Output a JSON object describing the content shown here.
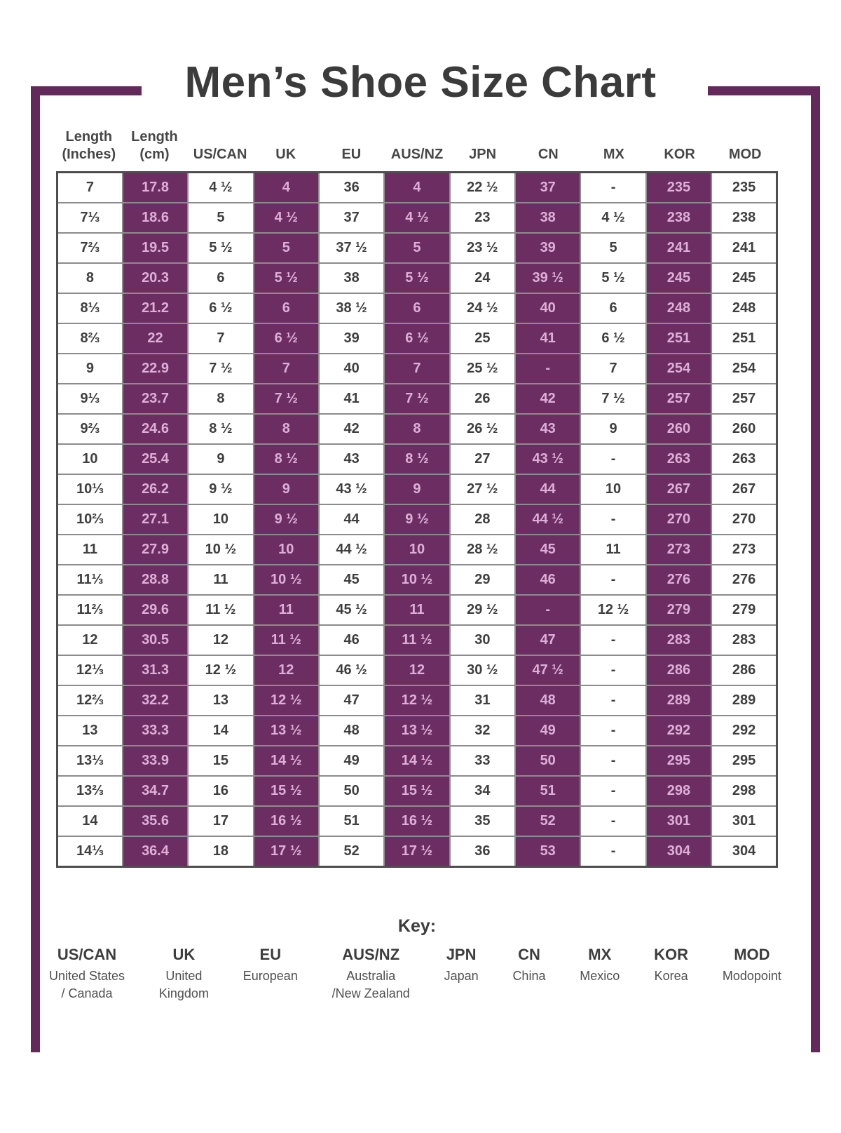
{
  "chart_data": {
    "type": "table",
    "title": "Men’s Shoe Size Chart",
    "columns": [
      {
        "key": "length-inches",
        "label": "Length (Inches)",
        "label_lines": [
          "Length",
          "(Inches)"
        ]
      },
      {
        "key": "length-cm",
        "label": "Length (cm)",
        "label_lines": [
          "Length",
          "(cm)"
        ]
      },
      {
        "key": "us-can",
        "label": "US/CAN",
        "label_lines": [
          "US/CAN"
        ]
      },
      {
        "key": "uk",
        "label": "UK",
        "label_lines": [
          "UK"
        ]
      },
      {
        "key": "eu",
        "label": "EU",
        "label_lines": [
          "EU"
        ]
      },
      {
        "key": "aus-nz",
        "label": "AUS/NZ",
        "label_lines": [
          "AUS/NZ"
        ]
      },
      {
        "key": "jpn",
        "label": "JPN",
        "label_lines": [
          "JPN"
        ]
      },
      {
        "key": "cn",
        "label": "CN",
        "label_lines": [
          "CN"
        ]
      },
      {
        "key": "mx",
        "label": "MX",
        "label_lines": [
          "MX"
        ]
      },
      {
        "key": "kor",
        "label": "KOR",
        "label_lines": [
          "KOR"
        ]
      },
      {
        "key": "mod",
        "label": "MOD",
        "label_lines": [
          "MOD"
        ]
      }
    ],
    "rows": [
      [
        "7",
        "17.8",
        "4 ½",
        "4",
        "36",
        "4",
        "22 ½",
        "37",
        "-",
        "235",
        "235"
      ],
      [
        "7⅓",
        "18.6",
        "5",
        "4 ½",
        "37",
        "4 ½",
        "23",
        "38",
        "4 ½",
        "238",
        "238"
      ],
      [
        "7⅔",
        "19.5",
        "5 ½",
        "5",
        "37 ½",
        "5",
        "23 ½",
        "39",
        "5",
        "241",
        "241"
      ],
      [
        "8",
        "20.3",
        "6",
        "5 ½",
        "38",
        "5 ½",
        "24",
        "39 ½",
        "5 ½",
        "245",
        "245"
      ],
      [
        "8⅓",
        "21.2",
        "6 ½",
        "6",
        "38 ½",
        "6",
        "24 ½",
        "40",
        "6",
        "248",
        "248"
      ],
      [
        "8⅔",
        "22",
        "7",
        "6 ½",
        "39",
        "6 ½",
        "25",
        "41",
        "6 ½",
        "251",
        "251"
      ],
      [
        "9",
        "22.9",
        "7 ½",
        "7",
        "40",
        "7",
        "25 ½",
        "-",
        "7",
        "254",
        "254"
      ],
      [
        "9⅓",
        "23.7",
        "8",
        "7 ½",
        "41",
        "7 ½",
        "26",
        "42",
        "7 ½",
        "257",
        "257"
      ],
      [
        "9⅔",
        "24.6",
        "8 ½",
        "8",
        "42",
        "8",
        "26 ½",
        "43",
        "9",
        "260",
        "260"
      ],
      [
        "10",
        "25.4",
        "9",
        "8 ½",
        "43",
        "8 ½",
        "27",
        "43 ½",
        "-",
        "263",
        "263"
      ],
      [
        "10⅓",
        "26.2",
        "9 ½",
        "9",
        "43 ½",
        "9",
        "27 ½",
        "44",
        "10",
        "267",
        "267"
      ],
      [
        "10⅔",
        "27.1",
        "10",
        "9 ½",
        "44",
        "9 ½",
        "28",
        "44 ½",
        "-",
        "270",
        "270"
      ],
      [
        "11",
        "27.9",
        "10 ½",
        "10",
        "44 ½",
        "10",
        "28 ½",
        "45",
        "11",
        "273",
        "273"
      ],
      [
        "11⅓",
        "28.8",
        "11",
        "10 ½",
        "45",
        "10 ½",
        "29",
        "46",
        "-",
        "276",
        "276"
      ],
      [
        "11⅔",
        "29.6",
        "11 ½",
        "11",
        "45 ½",
        "11",
        "29 ½",
        "-",
        "12 ½",
        "279",
        "279"
      ],
      [
        "12",
        "30.5",
        "12",
        "11 ½",
        "46",
        "11 ½",
        "30",
        "47",
        "-",
        "283",
        "283"
      ],
      [
        "12⅓",
        "31.3",
        "12 ½",
        "12",
        "46 ½",
        "12",
        "30 ½",
        "47 ½",
        "-",
        "286",
        "286"
      ],
      [
        "12⅔",
        "32.2",
        "13",
        "12 ½",
        "47",
        "12 ½",
        "31",
        "48",
        "-",
        "289",
        "289"
      ],
      [
        "13",
        "33.3",
        "14",
        "13 ½",
        "48",
        "13 ½",
        "32",
        "49",
        "-",
        "292",
        "292"
      ],
      [
        "13⅓",
        "33.9",
        "15",
        "14 ½",
        "49",
        "14 ½",
        "33",
        "50",
        "-",
        "295",
        "295"
      ],
      [
        "13⅔",
        "34.7",
        "16",
        "15 ½",
        "50",
        "15 ½",
        "34",
        "51",
        "-",
        "298",
        "298"
      ],
      [
        "14",
        "35.6",
        "17",
        "16 ½",
        "51",
        "16 ½",
        "35",
        "52",
        "-",
        "301",
        "301"
      ],
      [
        "14⅓",
        "36.4",
        "18",
        "17 ½",
        "52",
        "17 ½",
        "36",
        "53",
        "-",
        "304",
        "304"
      ]
    ],
    "purple_column_indexes": [
      1,
      3,
      5,
      7,
      9
    ]
  },
  "key": {
    "heading": "Key:",
    "entries": [
      {
        "abbr": "US/CAN",
        "desc": "United States / Canada",
        "desc_lines": [
          "United States",
          "/ Canada"
        ]
      },
      {
        "abbr": "UK",
        "desc": "United Kingdom",
        "desc_lines": [
          "United",
          "Kingdom"
        ]
      },
      {
        "abbr": "EU",
        "desc": "European",
        "desc_lines": [
          "European"
        ]
      },
      {
        "abbr": "AUS/NZ",
        "desc": "Australia /New Zealand",
        "desc_lines": [
          "Australia",
          "/New Zealand"
        ]
      },
      {
        "abbr": "JPN",
        "desc": "Japan",
        "desc_lines": [
          "Japan"
        ]
      },
      {
        "abbr": "CN",
        "desc": "China",
        "desc_lines": [
          "China"
        ]
      },
      {
        "abbr": "MX",
        "desc": "Mexico",
        "desc_lines": [
          "Mexico"
        ]
      },
      {
        "abbr": "KOR",
        "desc": "Korea",
        "desc_lines": [
          "Korea"
        ]
      },
      {
        "abbr": "MOD",
        "desc": "Modopoint",
        "desc_lines": [
          "Modopoint"
        ]
      }
    ]
  },
  "colors": {
    "accent_purple": "#6C2E62",
    "purple_cell_text": "#DDAFD8",
    "frame_purple": "#63295B",
    "text_dark": "#3B3B3B"
  }
}
